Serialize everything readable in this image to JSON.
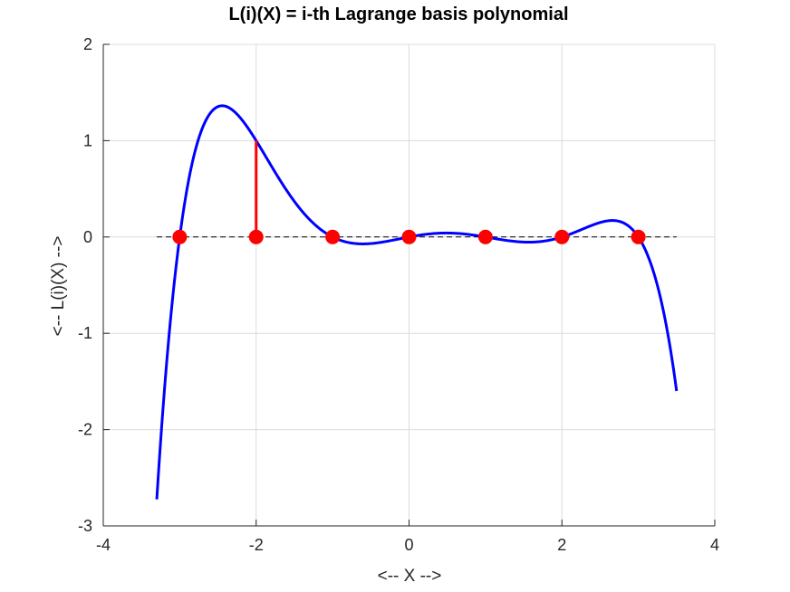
{
  "chart_data": {
    "type": "line",
    "title": "L(i)(X) = i-th Lagrange basis polynomial",
    "xlabel": "<-- X -->",
    "ylabel": "<-- L(i)(X) -->",
    "xlim": [
      -4,
      4
    ],
    "ylim": [
      -3,
      2
    ],
    "xticks": [
      -4,
      -2,
      0,
      2,
      4
    ],
    "yticks": [
      -3,
      -2,
      -1,
      0,
      1,
      2
    ],
    "xtick_labels": [
      "-4",
      "-2",
      "0",
      "2",
      "4"
    ],
    "ytick_labels": [
      "-3",
      "-2",
      "-1",
      "0",
      "1",
      "2"
    ],
    "grid": true,
    "nodes": [
      -3,
      -2,
      -1,
      0,
      1,
      2,
      3
    ],
    "basis_index_node": -2,
    "curve_domain": [
      -3.3,
      3.5
    ],
    "baseline": {
      "x": [
        -3.3,
        3.5
      ],
      "y": 0,
      "style": "dashed"
    },
    "stem": {
      "x": -2,
      "y": [
        0,
        1
      ]
    },
    "series": [
      {
        "kind": "curve",
        "color": "#0000ff"
      },
      {
        "kind": "nodes",
        "color": "#ff0000"
      },
      {
        "kind": "stem",
        "color": "#ff0000"
      },
      {
        "kind": "baseline",
        "color": "#000000"
      }
    ]
  }
}
